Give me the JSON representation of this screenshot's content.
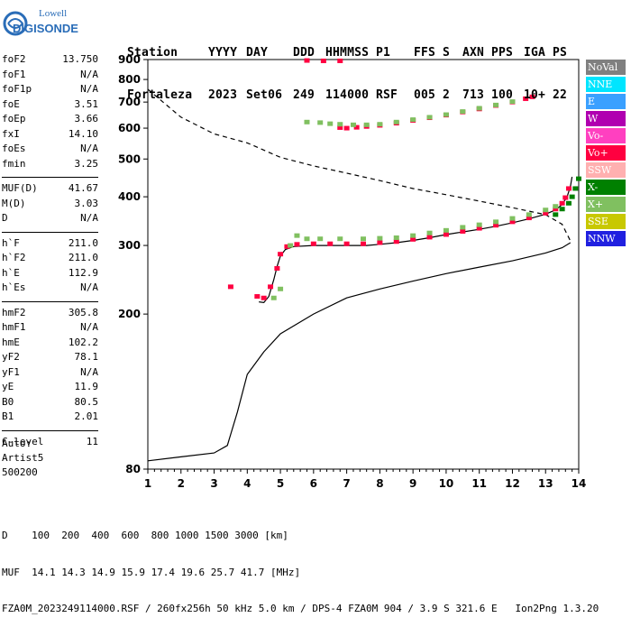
{
  "logo": {
    "line1": "Lowell",
    "line2": "DIGISONDE"
  },
  "header": {
    "labels": [
      "Station",
      "YYYY",
      "DAY",
      "DDD",
      "HHMMSS",
      "P1",
      "FFS",
      "S",
      "AXN",
      "PPS",
      "IGA",
      "PS"
    ],
    "values": [
      "Fortaleza",
      "2023",
      "Set06",
      "249",
      "114000",
      "RSF",
      "005",
      "2",
      "713",
      "100",
      "10+",
      "22"
    ]
  },
  "params": [
    {
      "name": "foF2",
      "value": "13.750"
    },
    {
      "name": "foF1",
      "value": "N/A"
    },
    {
      "name": "foF1p",
      "value": "N/A"
    },
    {
      "name": "foE",
      "value": "3.51"
    },
    {
      "name": "foEp",
      "value": "3.66"
    },
    {
      "name": "fxI",
      "value": "14.10"
    },
    {
      "name": "foEs",
      "value": "N/A"
    },
    {
      "name": "fmin",
      "value": "3.25"
    },
    {
      "sep": true
    },
    {
      "name": "MUF(D)",
      "value": "41.67"
    },
    {
      "name": "M(D)",
      "value": "3.03"
    },
    {
      "name": "D",
      "value": "N/A"
    },
    {
      "sep": true
    },
    {
      "name": "h`F",
      "value": "211.0"
    },
    {
      "name": "h`F2",
      "value": "211.0"
    },
    {
      "name": "h`E",
      "value": "112.9"
    },
    {
      "name": "h`Es",
      "value": "N/A"
    },
    {
      "sep": true
    },
    {
      "name": "hmF2",
      "value": "305.8"
    },
    {
      "name": "hmF1",
      "value": "N/A"
    },
    {
      "name": "hmE",
      "value": "102.2"
    },
    {
      "name": "yF2",
      "value": "78.1"
    },
    {
      "name": "yF1",
      "value": "N/A"
    },
    {
      "name": "yE",
      "value": "11.9"
    },
    {
      "name": "B0",
      "value": "80.5"
    },
    {
      "name": "B1",
      "value": "2.01"
    },
    {
      "sep": true
    },
    {
      "name": "C-level",
      "value": "11"
    }
  ],
  "auto": {
    "line1": "Auto:",
    "line2": "Artist5",
    "line3": "500200"
  },
  "legend": [
    {
      "label": "NoVal",
      "color": "#808080"
    },
    {
      "label": "NNE",
      "color": "#00e5ff"
    },
    {
      "label": "E",
      "color": "#3aa0ff"
    },
    {
      "label": "W",
      "color": "#b000b0"
    },
    {
      "label": "Vo-",
      "color": "#ff40c0"
    },
    {
      "label": "Vo+",
      "color": "#ff0040"
    },
    {
      "label": "SSW",
      "color": "#ffb0b0"
    },
    {
      "label": "X-",
      "color": "#008000"
    },
    {
      "label": "X+",
      "color": "#80c060"
    },
    {
      "label": "SSE",
      "color": "#c8c800"
    },
    {
      "label": "NNW",
      "color": "#2020e0"
    }
  ],
  "footer": {
    "line1": "D    100  200  400  600  800 1000 1500 3000 [km]",
    "line2": "MUF  14.1 14.3 14.9 15.9 17.4 19.6 25.7 41.7 [MHz]",
    "line3": "FZA0M_2023249114000.RSF / 260fx256h 50 kHz 5.0 km / DPS-4 FZA0M 904 / 3.9 S 321.6 E   Ion2Png 1.3.20"
  },
  "chart_data": {
    "type": "scatter",
    "title": "",
    "xlabel": "",
    "ylabel": "",
    "xlim": [
      1,
      14
    ],
    "ylim": [
      80,
      900
    ],
    "x_ticks": [
      1,
      2,
      3,
      4,
      5,
      6,
      7,
      8,
      9,
      10,
      11,
      12,
      13,
      14
    ],
    "y_ticks": [
      80,
      200,
      300,
      400,
      500,
      600,
      700,
      800,
      900
    ],
    "y_scale": "log",
    "series": [
      {
        "name": "Vo+",
        "color": "#ff0040",
        "points": [
          [
            3.5,
            235
          ],
          [
            4.3,
            222
          ],
          [
            4.5,
            220
          ],
          [
            4.7,
            235
          ],
          [
            4.9,
            262
          ],
          [
            5.0,
            285
          ],
          [
            5.2,
            298
          ],
          [
            5.5,
            302
          ],
          [
            6.0,
            303
          ],
          [
            6.5,
            303
          ],
          [
            7.0,
            303
          ],
          [
            7.5,
            303
          ],
          [
            8.0,
            305
          ],
          [
            8.5,
            307
          ],
          [
            9.0,
            311
          ],
          [
            9.5,
            315
          ],
          [
            10.0,
            320
          ],
          [
            10.5,
            326
          ],
          [
            11.0,
            332
          ],
          [
            11.5,
            338
          ],
          [
            12.0,
            345
          ],
          [
            12.5,
            353
          ],
          [
            13.0,
            363
          ],
          [
            13.3,
            372
          ],
          [
            13.5,
            385
          ],
          [
            13.6,
            398
          ],
          [
            13.7,
            420
          ],
          [
            6.8,
            602
          ],
          [
            7.0,
            600
          ],
          [
            7.3,
            603
          ],
          [
            7.6,
            606
          ],
          [
            8.0,
            610
          ],
          [
            8.5,
            618
          ],
          [
            9.0,
            628
          ],
          [
            9.5,
            638
          ],
          [
            10.0,
            648
          ],
          [
            10.5,
            660
          ],
          [
            11.0,
            672
          ],
          [
            11.5,
            686
          ],
          [
            12.0,
            700
          ],
          [
            12.4,
            714
          ],
          [
            12.6,
            722
          ],
          [
            5.8,
            895
          ],
          [
            6.3,
            893
          ],
          [
            6.8,
            893
          ]
        ]
      },
      {
        "name": "X+",
        "color": "#80c060",
        "points": [
          [
            4.8,
            220
          ],
          [
            5.0,
            232
          ],
          [
            5.3,
            300
          ],
          [
            5.5,
            318
          ],
          [
            5.8,
            312
          ],
          [
            6.2,
            312
          ],
          [
            6.8,
            312
          ],
          [
            7.5,
            312
          ],
          [
            8.0,
            313
          ],
          [
            8.5,
            314
          ],
          [
            9.0,
            318
          ],
          [
            9.5,
            323
          ],
          [
            10.0,
            328
          ],
          [
            10.5,
            334
          ],
          [
            11.0,
            339
          ],
          [
            11.5,
            345
          ],
          [
            12.0,
            352
          ],
          [
            12.5,
            360
          ],
          [
            13.0,
            370
          ],
          [
            13.3,
            378
          ],
          [
            5.8,
            622
          ],
          [
            6.2,
            620
          ],
          [
            6.5,
            616
          ],
          [
            6.8,
            614
          ],
          [
            7.2,
            612
          ],
          [
            7.6,
            612
          ],
          [
            8.0,
            614
          ],
          [
            8.5,
            622
          ],
          [
            9.0,
            631
          ],
          [
            9.5,
            640
          ],
          [
            10.0,
            650
          ],
          [
            10.5,
            662
          ],
          [
            11.0,
            675
          ],
          [
            11.5,
            688
          ],
          [
            12.0,
            702
          ]
        ]
      },
      {
        "name": "X-",
        "color": "#008000",
        "points": [
          [
            13.3,
            360
          ],
          [
            13.5,
            372
          ],
          [
            13.7,
            385
          ],
          [
            13.8,
            400
          ],
          [
            13.9,
            420
          ],
          [
            14.0,
            445
          ]
        ]
      }
    ],
    "lines": [
      {
        "name": "trace",
        "style": "solid",
        "points": [
          [
            4.35,
            215
          ],
          [
            4.5,
            214
          ],
          [
            4.65,
            222
          ],
          [
            4.8,
            245
          ],
          [
            4.9,
            265
          ],
          [
            5.0,
            282
          ],
          [
            5.15,
            293
          ],
          [
            5.4,
            298
          ],
          [
            6.0,
            300
          ],
          [
            7.0,
            300
          ],
          [
            7.6,
            300
          ],
          [
            8.0,
            302
          ],
          [
            8.5,
            305
          ],
          [
            9.0,
            309
          ],
          [
            9.5,
            314
          ],
          [
            10.0,
            320
          ],
          [
            10.5,
            325
          ],
          [
            11.0,
            330
          ],
          [
            11.5,
            336
          ],
          [
            12.0,
            343
          ],
          [
            12.5,
            351
          ],
          [
            13.0,
            361
          ],
          [
            13.3,
            370
          ],
          [
            13.5,
            382
          ],
          [
            13.65,
            400
          ],
          [
            13.75,
            425
          ],
          [
            13.8,
            450
          ]
        ]
      },
      {
        "name": "profile",
        "style": "solid",
        "points": [
          [
            1.0,
            84
          ],
          [
            2.0,
            86
          ],
          [
            3.0,
            88
          ],
          [
            3.4,
            92
          ],
          [
            3.7,
            112
          ],
          [
            4.0,
            140
          ],
          [
            4.5,
            160
          ],
          [
            5.0,
            178
          ],
          [
            6.0,
            200
          ],
          [
            7.0,
            220
          ],
          [
            8.0,
            232
          ],
          [
            9.0,
            243
          ],
          [
            10.0,
            254
          ],
          [
            11.0,
            264
          ],
          [
            12.0,
            274
          ],
          [
            13.0,
            287
          ],
          [
            13.5,
            296
          ],
          [
            13.75,
            305
          ]
        ]
      },
      {
        "name": "profile-extension",
        "style": "dashed",
        "points": [
          [
            1.0,
            755
          ],
          [
            2.0,
            640
          ],
          [
            3.0,
            580
          ],
          [
            4.0,
            550
          ],
          [
            5.0,
            505
          ],
          [
            6.0,
            480
          ],
          [
            7.0,
            460
          ],
          [
            8.0,
            440
          ],
          [
            9.0,
            420
          ],
          [
            10.0,
            405
          ],
          [
            11.0,
            390
          ],
          [
            12.0,
            375
          ],
          [
            13.0,
            360
          ],
          [
            13.5,
            340
          ],
          [
            13.75,
            308
          ]
        ]
      }
    ]
  }
}
